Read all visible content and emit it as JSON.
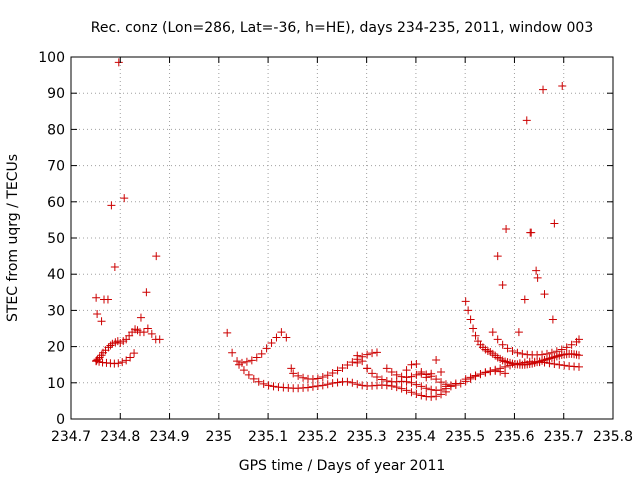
{
  "chart_data": {
    "type": "scatter",
    "title": "Rec. conz (Lon=286, Lat=-36, h=HE), days 234-235, 2011, window 003",
    "xlabel": "GPS time / Days of year 2011",
    "ylabel": "STEC from uqrg / TECUs",
    "xlim": [
      234.7,
      235.8
    ],
    "ylim": [
      0,
      100
    ],
    "xticks": [
      234.7,
      234.8,
      234.9,
      235.0,
      235.1,
      235.2,
      235.3,
      235.4,
      235.5,
      235.6,
      235.7,
      235.8
    ],
    "xtick_labels": [
      "234.7",
      "234.8",
      "234.9",
      "235",
      "235.1",
      "235.2",
      "235.3",
      "235.4",
      "235.5",
      "235.6",
      "235.7",
      "235.8"
    ],
    "yticks": [
      0,
      10,
      20,
      30,
      40,
      50,
      60,
      70,
      80,
      90,
      100
    ],
    "ytick_labels": [
      "0",
      "10",
      "20",
      "30",
      "40",
      "50",
      "60",
      "70",
      "80",
      "90",
      "100"
    ],
    "grid": true,
    "marker_color": "#cc0000",
    "marker": "plus",
    "series": [
      {
        "x": [
          234.751,
          234.752,
          234.754,
          234.758,
          234.762,
          234.765,
          234.77,
          234.776,
          234.78,
          234.784,
          234.79,
          234.795,
          234.8,
          234.806,
          234.812,
          234.818,
          234.824,
          234.83,
          234.835,
          234.84,
          234.848,
          234.856,
          234.864,
          234.872,
          234.88,
          234.751,
          234.757,
          234.764,
          234.772,
          234.78,
          234.788,
          234.796,
          234.804,
          234.812,
          234.82,
          234.828,
          234.751,
          234.753,
          234.762,
          234.767,
          234.775,
          234.782,
          234.789,
          234.797,
          234.808,
          234.842,
          234.853,
          234.873,
          235.017,
          235.027,
          235.037,
          235.047,
          235.057,
          235.067,
          235.077,
          235.087,
          235.097,
          235.107,
          235.117,
          235.127,
          235.137,
          235.147,
          235.041,
          235.051,
          235.061,
          235.071,
          235.081,
          235.091,
          235.101,
          235.111,
          235.121,
          235.131,
          235.141,
          235.151,
          235.161,
          235.171,
          235.181,
          235.191,
          235.201,
          235.211,
          235.221,
          235.231,
          235.241,
          235.251,
          235.261,
          235.271,
          235.281,
          235.291,
          235.301,
          235.311,
          235.321,
          235.331,
          235.341,
          235.351,
          235.361,
          235.371,
          235.381,
          235.391,
          235.401,
          235.411,
          235.421,
          235.431,
          235.441,
          235.451,
          235.461,
          235.151,
          235.161,
          235.171,
          235.181,
          235.191,
          235.201,
          235.211,
          235.221,
          235.231,
          235.241,
          235.251,
          235.261,
          235.271,
          235.281,
          235.291,
          235.301,
          235.311,
          235.321,
          235.281,
          235.291,
          235.301,
          235.311,
          235.321,
          235.331,
          235.341,
          235.351,
          235.361,
          235.371,
          235.381,
          235.391,
          235.401,
          235.411,
          235.421,
          235.431,
          235.441,
          235.451,
          235.461,
          235.471,
          235.481,
          235.341,
          235.351,
          235.361,
          235.371,
          235.381,
          235.391,
          235.401,
          235.411,
          235.421,
          235.431,
          235.441,
          235.451,
          235.461,
          235.471,
          235.481,
          235.491,
          235.501,
          235.511,
          235.521,
          235.531,
          235.541,
          235.551,
          235.561,
          235.571,
          235.581,
          235.281,
          235.301,
          235.381,
          235.391,
          235.401,
          235.411,
          235.421,
          235.431,
          235.441,
          235.451,
          235.461,
          235.501,
          235.506,
          235.511,
          235.516,
          235.521,
          235.526,
          235.531,
          235.536,
          235.541,
          235.546,
          235.551,
          235.556,
          235.561,
          235.566,
          235.571,
          235.576,
          235.581,
          235.586,
          235.591,
          235.596,
          235.601,
          235.606,
          235.611,
          235.616,
          235.621,
          235.626,
          235.631,
          235.636,
          235.641,
          235.646,
          235.651,
          235.656,
          235.661,
          235.666,
          235.671,
          235.676,
          235.681,
          235.686,
          235.691,
          235.696,
          235.701,
          235.706,
          235.711,
          235.716,
          235.721,
          235.726,
          235.731,
          235.556,
          235.566,
          235.576,
          235.586,
          235.596,
          235.606,
          235.616,
          235.626,
          235.636,
          235.646,
          235.656,
          235.666,
          235.676,
          235.686,
          235.696,
          235.706,
          235.716,
          235.726,
          235.731,
          235.501,
          235.511,
          235.521,
          235.531,
          235.541,
          235.551,
          235.561,
          235.571,
          235.581,
          235.591,
          235.601,
          235.611,
          235.621,
          235.631,
          235.641,
          235.651,
          235.661,
          235.671,
          235.681,
          235.691,
          235.701,
          235.711,
          235.721,
          235.731,
          235.566,
          235.576,
          235.583,
          235.609,
          235.621,
          235.625,
          235.632,
          235.634,
          235.644,
          235.647,
          235.658,
          235.661,
          235.681,
          235.697,
          235.678
        ],
        "y": [
          16.0,
          16.2,
          16.5,
          17.0,
          17.6,
          18.3,
          19.0,
          19.8,
          20.3,
          20.8,
          21.2,
          21.5,
          21.0,
          21.5,
          22.0,
          23.0,
          24.0,
          24.8,
          24.5,
          24.0,
          24.0,
          25.0,
          23.5,
          22.0,
          22.0,
          16.0,
          15.8,
          15.6,
          15.5,
          15.4,
          15.3,
          15.4,
          15.7,
          16.2,
          17.0,
          18.2,
          33.5,
          29.0,
          27.0,
          33.0,
          33.0,
          59.0,
          42.0,
          98.5,
          61.0,
          28.0,
          35.0,
          45.0,
          23.8,
          18.3,
          16.0,
          15.5,
          15.8,
          16.2,
          17.0,
          18.0,
          19.5,
          21.0,
          22.5,
          24.0,
          22.5,
          14.0,
          15.0,
          13.5,
          12.2,
          11.1,
          10.3,
          9.7,
          9.3,
          9.0,
          8.8,
          8.7,
          8.6,
          8.5,
          8.5,
          8.6,
          8.7,
          8.9,
          9.1,
          9.3,
          9.6,
          9.9,
          10.1,
          10.3,
          10.3,
          10.0,
          9.6,
          9.3,
          9.1,
          9.2,
          9.3,
          9.4,
          9.3,
          9.1,
          8.8,
          8.4,
          7.9,
          7.4,
          6.9,
          6.5,
          6.2,
          6.1,
          6.3,
          6.8,
          7.5,
          12.6,
          11.9,
          11.4,
          11.1,
          11.0,
          11.2,
          11.6,
          12.1,
          12.7,
          13.4,
          14.1,
          14.9,
          15.7,
          16.5,
          17.2,
          17.8,
          18.2,
          18.4,
          17.5,
          16.0,
          14.0,
          12.6,
          11.6,
          10.9,
          10.5,
          10.3,
          10.3,
          10.4,
          10.3,
          10.0,
          9.5,
          9.0,
          8.5,
          8.1,
          7.9,
          8.0,
          8.4,
          9.0,
          9.8,
          14.0,
          13.0,
          12.2,
          11.7,
          11.5,
          11.7,
          12.2,
          12.5,
          12.3,
          11.8,
          11.0,
          10.2,
          9.6,
          9.3,
          9.4,
          9.8,
          10.4,
          11.1,
          11.8,
          12.4,
          12.9,
          13.2,
          13.3,
          13.1,
          12.6,
          15.5,
          14.0,
          13.5,
          15.0,
          15.2,
          13.0,
          11.5,
          12.5,
          16.3,
          13.0,
          9.0,
          32.5,
          30.0,
          27.5,
          25.0,
          23.0,
          21.5,
          20.5,
          19.8,
          19.2,
          18.8,
          18.5,
          18.0,
          17.5,
          17.0,
          16.6,
          16.2,
          15.9,
          15.7,
          15.5,
          15.3,
          15.2,
          15.1,
          15.0,
          15.0,
          15.0,
          15.1,
          15.2,
          15.3,
          15.5,
          15.7,
          15.9,
          16.1,
          16.3,
          16.5,
          16.7,
          16.9,
          17.1,
          17.3,
          17.5,
          17.7,
          17.8,
          17.9,
          18.0,
          18.0,
          17.9,
          17.8,
          17.6,
          24.0,
          22.0,
          20.5,
          19.5,
          18.8,
          18.3,
          18.0,
          17.8,
          17.7,
          17.7,
          17.8,
          18.0,
          18.3,
          18.7,
          19.2,
          19.8,
          20.5,
          21.3,
          22.0,
          11.0,
          11.5,
          12.0,
          12.4,
          12.8,
          13.2,
          13.6,
          14.0,
          14.4,
          14.8,
          15.1,
          15.4,
          15.6,
          15.8,
          15.8,
          15.7,
          15.6,
          15.4,
          15.2,
          15.0,
          14.8,
          14.6,
          14.5,
          14.4,
          45.0,
          37.0,
          52.5,
          24.0,
          33.0,
          82.5,
          51.5,
          51.5,
          41.0,
          39.0,
          91.0,
          34.5,
          54.0,
          92.0,
          27.5
        ]
      }
    ]
  }
}
